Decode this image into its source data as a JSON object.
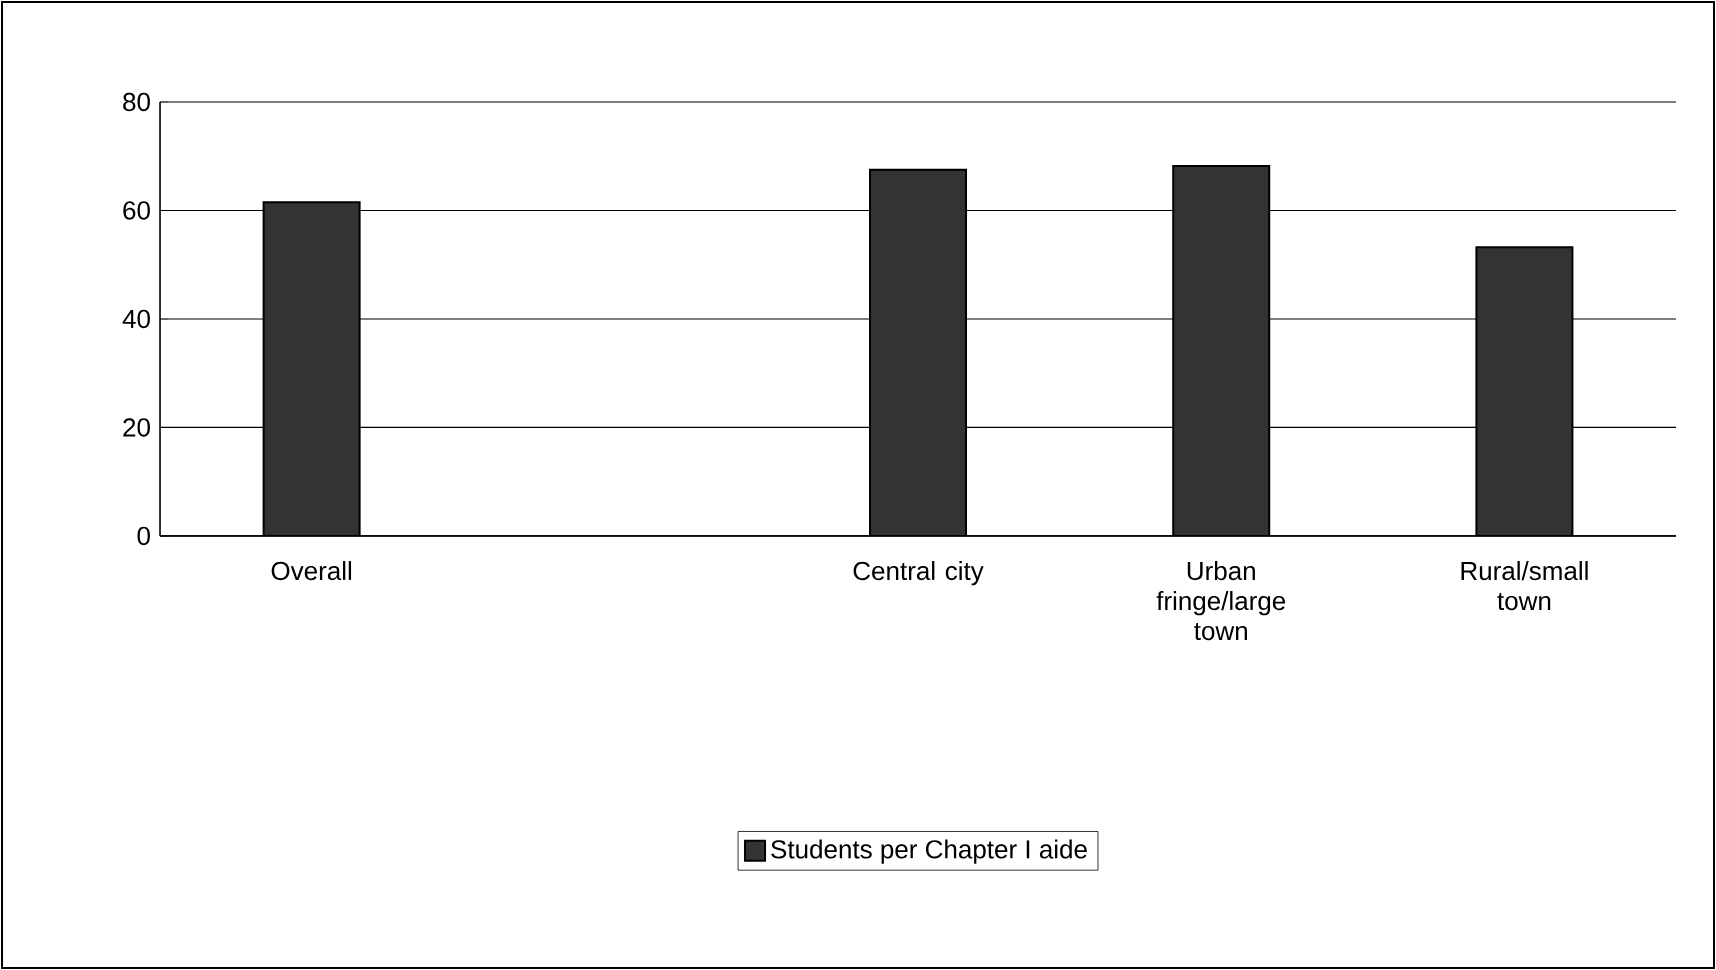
{
  "chart_data": {
    "type": "bar",
    "categories": [
      "Overall",
      null,
      "Central city",
      "Urban fringe/large town",
      "Rural/small town"
    ],
    "series": [
      {
        "name": "Students per Chapter I aide",
        "color": "#333333",
        "values": [
          61.5,
          null,
          67.5,
          68.2,
          53.2
        ]
      }
    ],
    "ylim": [
      0,
      80
    ],
    "yticks": [
      0,
      20,
      40,
      60,
      80
    ],
    "grid": "y",
    "legend": "bottom"
  }
}
